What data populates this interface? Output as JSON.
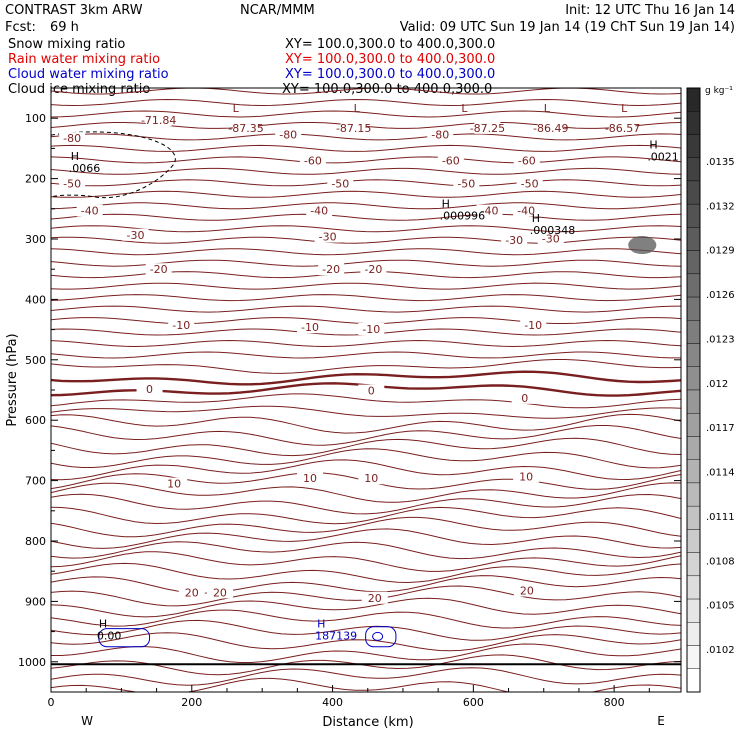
{
  "header": {
    "model": "CONTRAST  3km ARW",
    "org": "NCAR/MMM",
    "init": "Init: 12 UTC Thu 16 Jan 14",
    "fcst_label": "Fcst:",
    "fcst_value": "69 h",
    "valid": "Valid: 09 UTC Sun 19 Jan 14 (19 ChT Sun 19 Jan 14)"
  },
  "fields": [
    {
      "label": "Snow mixing ratio",
      "xy": "XY= 100.0,300.0 to 400.0,300.0",
      "color": "#000000"
    },
    {
      "label": "Rain water mixing ratio",
      "xy": "XY= 100.0,300.0 to 400.0,300.0",
      "color": "#e00000"
    },
    {
      "label": "Cloud water mixing ratio",
      "xy": "XY= 100.0,300.0 to 400.0,300.0",
      "color": "#0000c8"
    },
    {
      "label": "Cloud ice mixing ratio",
      "xy": "XY= 100.0,300.0 to 400.0,300.0",
      "color": "#000000"
    }
  ],
  "colorbar": {
    "unit": "g kg⁻¹",
    "labels": [
      ".0135",
      ".0132",
      ".0129",
      ".0126",
      ".0123",
      ".012",
      ".0117",
      ".0114",
      ".0111",
      ".0108",
      ".0105",
      ".0102"
    ]
  },
  "chart_data": {
    "type": "contour",
    "xlabel": "Distance (km)",
    "ylabel": "Pressure (hPa)",
    "xlim": [
      0,
      895
    ],
    "ylim": [
      1050,
      50
    ],
    "x_ticks": [
      0,
      200,
      400,
      600,
      800
    ],
    "y_ticks": [
      100,
      200,
      300,
      400,
      500,
      600,
      700,
      800,
      900,
      1000
    ],
    "x_end_labels": {
      "left": "W",
      "right": "E"
    },
    "isotherm_labels": [
      {
        "text": "-71.84",
        "x": 153,
        "p": 103
      },
      {
        "text": "-87.35",
        "x": 277,
        "p": 116
      },
      {
        "text": "-87.15",
        "x": 430,
        "p": 116
      },
      {
        "text": "-87.25",
        "x": 620,
        "p": 116
      },
      {
        "text": "-86.49",
        "x": 710,
        "p": 116
      },
      {
        "text": "-86.57",
        "x": 812,
        "p": 116
      },
      {
        "text": "-80",
        "x": 30,
        "p": 133
      },
      {
        "text": "-80",
        "x": 337,
        "p": 127
      },
      {
        "text": "-80",
        "x": 553,
        "p": 127
      },
      {
        "text": "-60",
        "x": 372,
        "p": 170
      },
      {
        "text": "-60",
        "x": 568,
        "p": 170
      },
      {
        "text": "-60",
        "x": 676,
        "p": 170
      },
      {
        "text": "-50",
        "x": 30,
        "p": 208
      },
      {
        "text": "-50",
        "x": 411,
        "p": 208
      },
      {
        "text": "-50",
        "x": 590,
        "p": 208
      },
      {
        "text": "-50",
        "x": 680,
        "p": 208
      },
      {
        "text": "-40",
        "x": 55,
        "p": 253
      },
      {
        "text": "-40",
        "x": 381,
        "p": 253
      },
      {
        "text": "-40",
        "x": 623,
        "p": 253
      },
      {
        "text": "-40",
        "x": 675,
        "p": 253
      },
      {
        "text": "-30",
        "x": 120,
        "p": 293
      },
      {
        "text": "-30",
        "x": 393,
        "p": 296
      },
      {
        "text": "-30",
        "x": 658,
        "p": 302
      },
      {
        "text": "-30",
        "x": 710,
        "p": 299
      },
      {
        "text": "-20",
        "x": 153,
        "p": 350
      },
      {
        "text": "-20",
        "x": 398,
        "p": 350
      },
      {
        "text": "-20",
        "x": 458,
        "p": 350
      },
      {
        "text": "-10",
        "x": 185,
        "p": 442
      },
      {
        "text": "-10",
        "x": 368,
        "p": 446
      },
      {
        "text": "-10",
        "x": 455,
        "p": 449
      },
      {
        "text": "-10",
        "x": 685,
        "p": 442
      },
      {
        "text": "0",
        "x": 140,
        "p": 548
      },
      {
        "text": "0",
        "x": 455,
        "p": 551
      },
      {
        "text": "0",
        "x": 673,
        "p": 563
      },
      {
        "text": "10",
        "x": 175,
        "p": 705
      },
      {
        "text": "10",
        "x": 368,
        "p": 696
      },
      {
        "text": "10",
        "x": 455,
        "p": 696
      },
      {
        "text": "10",
        "x": 675,
        "p": 693
      },
      {
        "text": "20",
        "x": 200,
        "p": 885
      },
      {
        "text": "20",
        "x": 240,
        "p": 885
      },
      {
        "text": "20",
        "x": 460,
        "p": 894
      },
      {
        "text": "20",
        "x": 676,
        "p": 882
      }
    ],
    "extrema": [
      {
        "kind": "L",
        "x": 258,
        "p": 90
      },
      {
        "kind": "L",
        "x": 430,
        "p": 90
      },
      {
        "kind": "L",
        "x": 583,
        "p": 90
      },
      {
        "kind": "L",
        "x": 700,
        "p": 90
      },
      {
        "kind": "L",
        "x": 810,
        "p": 90
      },
      {
        "kind": "H",
        "x": 28,
        "p": 169,
        "value": ".0066"
      },
      {
        "kind": "H",
        "x": 850,
        "p": 150,
        "value": ".0021"
      },
      {
        "kind": "H",
        "x": 555,
        "p": 248,
        "value": ".000996"
      },
      {
        "kind": "H",
        "x": 683,
        "p": 272,
        "value": ".000348"
      },
      {
        "kind": "H",
        "x": 378,
        "p": 943,
        "value": "187139"
      },
      {
        "kind": "H",
        "x": 68,
        "p": 943,
        "value": "0.00"
      }
    ],
    "cloud_ice_patch": {
      "x": [
        820,
        860
      ],
      "p": [
        295,
        325
      ]
    }
  }
}
